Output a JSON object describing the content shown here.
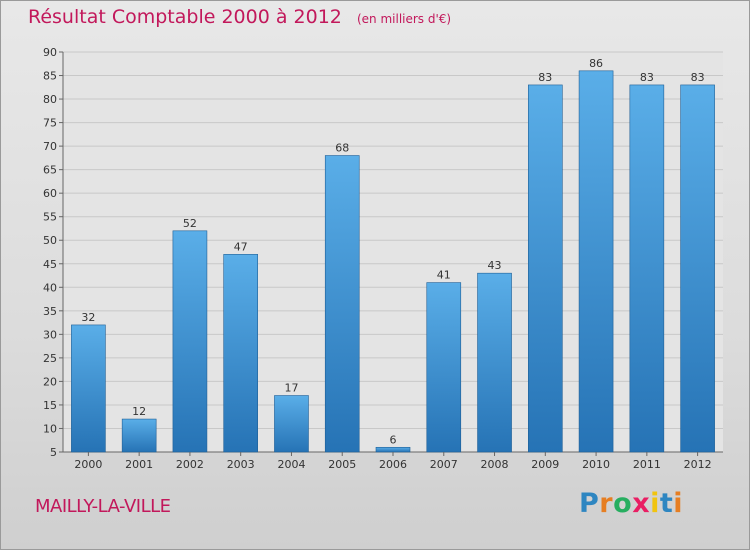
{
  "chart_data": {
    "type": "bar",
    "title": "Résultat Comptable 2000 à 2012",
    "subtitle": "(en milliers d'€)",
    "categories": [
      "2000",
      "2001",
      "2002",
      "2003",
      "2004",
      "2005",
      "2006",
      "2007",
      "2008",
      "2009",
      "2010",
      "2011",
      "2012"
    ],
    "values": [
      32,
      12,
      52,
      47,
      17,
      68,
      6,
      41,
      43,
      83,
      86,
      83,
      83
    ],
    "ylim": [
      5,
      90
    ],
    "yticks": [
      5,
      10,
      15,
      20,
      25,
      30,
      35,
      40,
      45,
      50,
      55,
      60,
      65,
      70,
      75,
      80,
      85,
      90
    ],
    "xlabel": "",
    "ylabel": "",
    "grid": true,
    "bar_color_top": "#5aaee8",
    "bar_color_bottom": "#2673b5"
  },
  "footer": {
    "place": "MAILLY-LA-VILLE",
    "brand_letters": [
      {
        "ch": "P",
        "color": "#2e86c1"
      },
      {
        "ch": "r",
        "color": "#e67e22"
      },
      {
        "ch": "o",
        "color": "#27ae60"
      },
      {
        "ch": "x",
        "color": "#e91e63"
      },
      {
        "ch": "i",
        "color": "#f1c40f"
      },
      {
        "ch": "t",
        "color": "#2e86c1"
      },
      {
        "ch": "i",
        "color": "#e67e22"
      }
    ]
  }
}
